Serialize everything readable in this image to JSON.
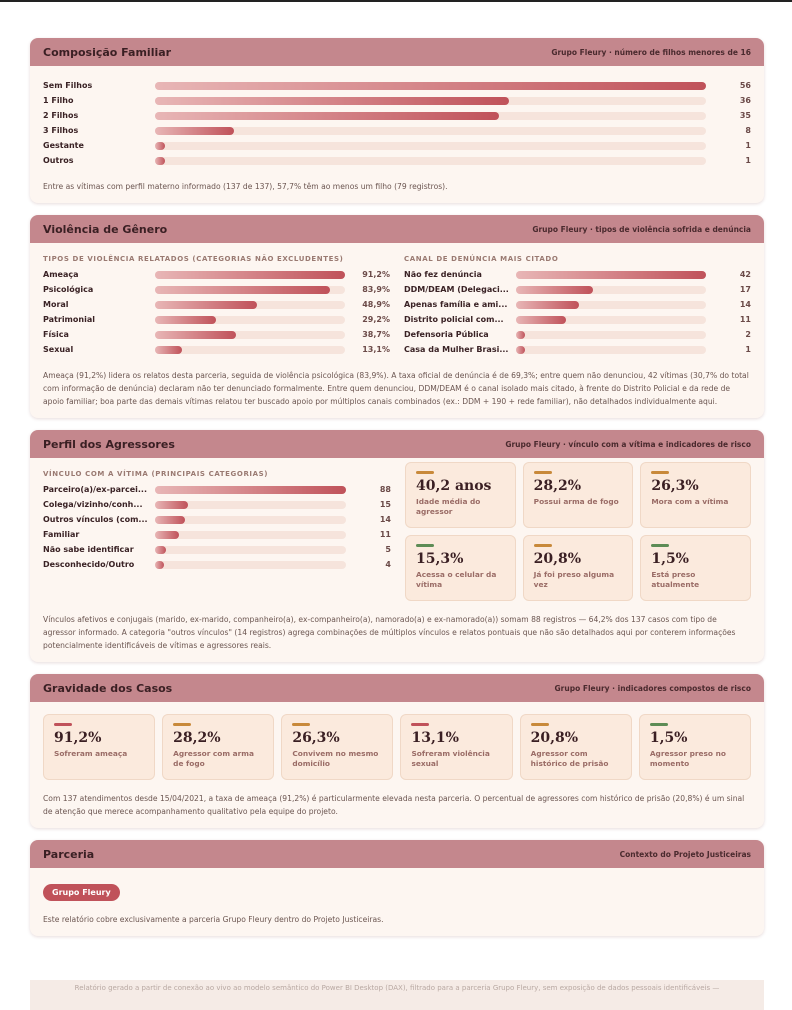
{
  "cards": [
    {
      "title": "Composição Familiar",
      "subtitle": "Grupo Fleury · número de filhos menores de 16",
      "columns": [
        {
          "rows": [
            {
              "label": "Sem Filhos",
              "value": 56
            },
            {
              "label": "1 Filho",
              "value": 36
            },
            {
              "label": "2 Filhos",
              "value": 35
            },
            {
              "label": "3 Filhos",
              "value": 8
            },
            {
              "label": "Gestante",
              "value": 1
            },
            {
              "label": "Outros",
              "value": 1
            }
          ]
        }
      ],
      "paragraphs": [
        "Entre as vítimas com perfil materno informado (137 de 137), 57,7% têm ao menos um filho (79 registros)."
      ]
    },
    {
      "title": "Violência de Gênero",
      "subtitle": "Grupo Fleury · tipos de violência sofrida e denúncia",
      "columns": [
        {
          "heading": "TIPOS DE VIOLÊNCIA RELATADOS (CATEGORIAS NÃO EXCLUDENTES)",
          "rows": [
            {
              "label": "Ameaça",
              "value": 91.2,
              "value_label": "91,2%"
            },
            {
              "label": "Psicológica",
              "value": 83.9,
              "value_label": "83,9%"
            },
            {
              "label": "Moral",
              "value": 48.9,
              "value_label": "48,9%"
            },
            {
              "label": "Patrimonial",
              "value": 29.2,
              "value_label": "29,2%"
            },
            {
              "label": "Física",
              "value": 38.7,
              "value_label": "38,7%"
            },
            {
              "label": "Sexual",
              "value": 13.1,
              "value_label": "13,1%"
            }
          ]
        },
        {
          "heading": "CANAL DE DENÚNCIA MAIS CITADO",
          "rows": [
            {
              "label": "Não fez denúncia",
              "value": 42
            },
            {
              "label": "DDM/DEAM (Delegaci...",
              "value": 17
            },
            {
              "label": "Apenas família e ami...",
              "value": 14
            },
            {
              "label": "Distrito policial com...",
              "value": 11
            },
            {
              "label": "Defensoria Pública",
              "value": 2
            },
            {
              "label": "Casa da Mulher Brasi...",
              "value": 1
            }
          ]
        }
      ],
      "paragraphs": [
        "Ameaça (91,2%) lidera os relatos desta parceria, seguida de violência psicológica (83,9%). A taxa oficial de denúncia é de 69,3%; entre quem não denunciou, 42 vítimas (30,7% do total com informação de denúncia) declaram não ter denunciado formalmente. Entre quem denunciou, DDM/DEAM é o canal isolado mais citado, à frente do Distrito Policial e da rede de apoio familiar; boa parte das demais vítimas relatou ter buscado apoio por múltiplos canais combinados (ex.: DDM + 190 + rede familiar), não detalhados individualmente aqui."
      ]
    },
    {
      "title": "Perfil dos Agressores",
      "subtitle": "Grupo Fleury · vínculo com a vítima e indicadores de risco",
      "columns": [
        {
          "heading": "VÍNCULO COM A VÍTIMA (PRINCIPAIS CATEGORIAS)",
          "rows": [
            {
              "label": "Parceiro(a)/ex-parcei...",
              "value": 88
            },
            {
              "label": "Colega/vizinho/conh...",
              "value": 15
            },
            {
              "label": "Outros vínculos (com...",
              "value": 14
            },
            {
              "label": "Familiar",
              "value": 11
            },
            {
              "label": "Não sabe identificar",
              "value": 5
            },
            {
              "label": "Desconhecido/Outro",
              "value": 4
            }
          ]
        }
      ],
      "tiles": [
        {
          "value": "40,2 anos",
          "label": "Idade média do agressor",
          "accent": "#c8893a"
        },
        {
          "value": "28,2%",
          "label": "Possui arma de fogo",
          "accent": "#c8893a"
        },
        {
          "value": "26,3%",
          "label": "Mora com a vítima",
          "accent": "#c8893a"
        },
        {
          "value": "15,3%",
          "label": "Acessa o celular da vítima",
          "accent": "#5d8c55"
        },
        {
          "value": "20,8%",
          "label": "Já foi preso alguma vez",
          "accent": "#c8893a"
        },
        {
          "value": "1,5%",
          "label": "Está preso atualmente",
          "accent": "#5d8c55"
        }
      ],
      "paragraphs": [
        "Vínculos afetivos e conjugais (marido, ex-marido, companheiro(a), ex-companheiro(a), namorado(a) e ex-namorado(a)) somam 88 registros — 64,2% dos 137 casos com tipo de agressor informado. A categoria \"outros vínculos\" (14 registros) agrega combinações de múltiplos vínculos e relatos pontuais que não são detalhados aqui por conterem informações potencialmente identificáveis de vítimas e agressores reais."
      ]
    },
    {
      "title": "Gravidade dos Casos",
      "subtitle": "Grupo Fleury · indicadores compostos de risco",
      "tiles": [
        {
          "value": "91,2%",
          "label": "Sofreram ameaça",
          "accent": "#c0525a"
        },
        {
          "value": "28,2%",
          "label": "Agressor com arma de fogo",
          "accent": "#c8893a"
        },
        {
          "value": "26,3%",
          "label": "Convivem no mesmo domicílio",
          "accent": "#c8893a"
        },
        {
          "value": "13,1%",
          "label": "Sofreram violência sexual",
          "accent": "#c0525a"
        },
        {
          "value": "20,8%",
          "label": "Agressor com histórico de prisão",
          "accent": "#c8893a"
        },
        {
          "value": "1,5%",
          "label": "Agressor preso no momento",
          "accent": "#5d8c55"
        }
      ],
      "paragraphs": [
        "Com 137 atendimentos desde 15/04/2021, a taxa de ameaça (91,2%) é particularmente elevada nesta parceria. O percentual de agressores com histórico de prisão (20,8%) é um sinal de atenção que merece acompanhamento qualitativo pela equipe do projeto."
      ]
    },
    {
      "title": "Parceria",
      "subtitle": "Contexto do Projeto Justiceiras",
      "badge": "Grupo Fleury",
      "paragraphs": [
        "Este relatório cobre exclusivamente a parceria Grupo Fleury dentro do Projeto Justiceiras."
      ]
    }
  ],
  "footer": "Relatório gerado a partir de conexão ao vivo ao modelo semântico do Power BI Desktop (DAX), filtrado para a parceria Grupo Fleury, sem exposição de dados pessoais identificáveis —"
}
